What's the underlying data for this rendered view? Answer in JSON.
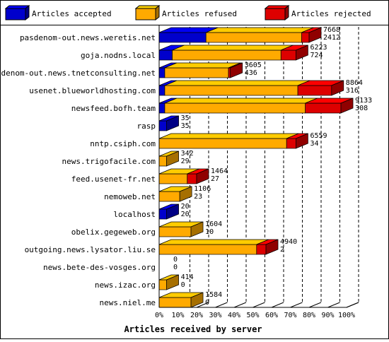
{
  "chart_data": {
    "type": "bar",
    "stacked": true,
    "orientation": "horizontal",
    "percent_scale": true,
    "xlabel": "Articles received by server",
    "ticks": [
      "0%",
      "10%",
      "20%",
      "30%",
      "40%",
      "50%",
      "60%",
      "70%",
      "80%",
      "90%",
      "100%"
    ],
    "legend": [
      {
        "name": "Articles accepted",
        "color": "#0000cc"
      },
      {
        "name": "Articles refused",
        "color": "#ffaa00"
      },
      {
        "name": "Articles rejected",
        "color": "#dd0000"
      }
    ],
    "grid": "dashed vertical",
    "servers": [
      {
        "name": "pasdenom-out.news.weretis.net",
        "accepted": 25,
        "refused": 51,
        "rejected": 4,
        "label_top": "7668",
        "label_bottom": "2412"
      },
      {
        "name": "goja.nodns.local",
        "accepted": 7,
        "refused": 58,
        "rejected": 8,
        "label_top": "6223",
        "label_bottom": "724"
      },
      {
        "name": "pasdenom-out.news.tnetconsulting.net",
        "accepted": 3,
        "refused": 34,
        "rejected": 1,
        "label_top": "3605",
        "label_bottom": "436"
      },
      {
        "name": "usenet.blueworldhosting.com",
        "accepted": 3,
        "refused": 71,
        "rejected": 18,
        "label_top": "8864",
        "label_bottom": "316"
      },
      {
        "name": "newsfeed.bofh.team",
        "accepted": 3,
        "refused": 75,
        "rejected": 19,
        "label_top": "9133",
        "label_bottom": "308"
      },
      {
        "name": "rasp",
        "accepted": 4,
        "refused": 0,
        "rejected": 0,
        "label_top": "35",
        "label_bottom": "35"
      },
      {
        "name": "nntp.csiph.com",
        "accepted": 0,
        "refused": 68,
        "rejected": 5,
        "label_top": "6559",
        "label_bottom": "34"
      },
      {
        "name": "news.trigofacile.com",
        "accepted": 0,
        "refused": 4,
        "rejected": 0,
        "label_top": "342",
        "label_bottom": "29"
      },
      {
        "name": "feed.usenet-fr.net",
        "accepted": 0,
        "refused": 15,
        "rejected": 5,
        "label_top": "1464",
        "label_bottom": "27"
      },
      {
        "name": "nemoweb.net",
        "accepted": 0,
        "refused": 11,
        "rejected": 0,
        "label_top": "1106",
        "label_bottom": "23"
      },
      {
        "name": "localhost",
        "accepted": 4,
        "refused": 0,
        "rejected": 0,
        "label_top": "20",
        "label_bottom": "20"
      },
      {
        "name": "obelix.gegeweb.org",
        "accepted": 0,
        "refused": 17,
        "rejected": 0,
        "label_top": "1604",
        "label_bottom": "10"
      },
      {
        "name": "outgoing.news.lysator.liu.se",
        "accepted": 0,
        "refused": 52,
        "rejected": 5,
        "label_top": "4940",
        "label_bottom": "2"
      },
      {
        "name": "news.bete-des-vosges.org",
        "accepted": 0,
        "refused": 0,
        "rejected": 0,
        "label_top": "0",
        "label_bottom": "0"
      },
      {
        "name": "news.izac.org",
        "accepted": 0,
        "refused": 4,
        "rejected": 0,
        "label_top": "414",
        "label_bottom": "0"
      },
      {
        "name": "news.niel.me",
        "accepted": 0,
        "refused": 17,
        "rejected": 0,
        "label_top": "1584",
        "label_bottom": "0"
      }
    ]
  }
}
